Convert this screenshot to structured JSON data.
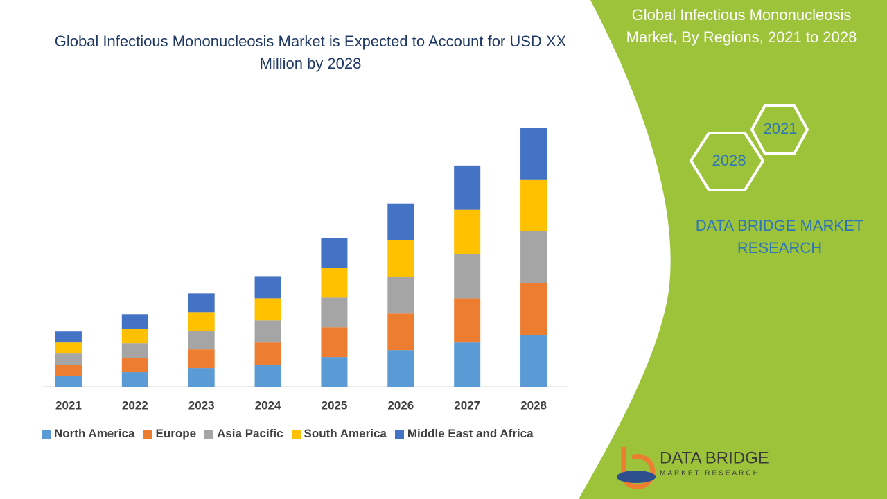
{
  "chart_data": {
    "type": "stacked_bar",
    "title": "Global Infectious Mononucleosis Market is Expected to Account for USD XX Million by 2028",
    "categories": [
      "2021",
      "2022",
      "2023",
      "2024",
      "2025",
      "2026",
      "2027",
      "2028"
    ],
    "series": [
      {
        "name": "North America",
        "color": "#5b9bd5",
        "values": [
          16,
          21,
          27,
          32,
          43,
          53,
          64,
          75
        ]
      },
      {
        "name": "Europe",
        "color": "#ed7d31",
        "values": [
          16,
          21,
          27,
          32,
          43,
          53,
          64,
          75
        ]
      },
      {
        "name": "Asia Pacific",
        "color": "#a5a5a5",
        "values": [
          16,
          21,
          27,
          32,
          43,
          53,
          64,
          75
        ]
      },
      {
        "name": "South America",
        "color": "#ffc000",
        "values": [
          16,
          21,
          27,
          32,
          43,
          53,
          64,
          75
        ]
      },
      {
        "name": "Middle East and Africa",
        "color": "#4472c4",
        "values": [
          16,
          21,
          27,
          32,
          43,
          53,
          64,
          75
        ]
      }
    ],
    "legend": "bottom"
  },
  "panel": {
    "title": "Global Infectious Mononucleosis Market, By Regions, 2021 to 2028",
    "hexagons": [
      "2021",
      "2028"
    ],
    "brand": "DATA BRIDGE MARKET RESEARCH",
    "logo": {
      "name": "DATA BRIDGE",
      "tagline": "MARKET RESEARCH"
    }
  }
}
